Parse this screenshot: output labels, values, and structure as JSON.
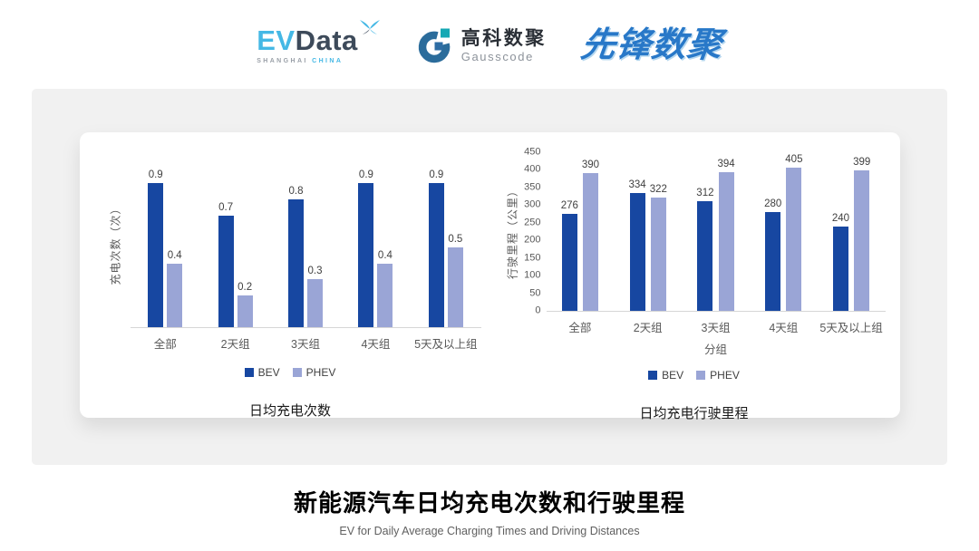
{
  "header": {
    "evdata": {
      "ev": "EV",
      "data": "Data",
      "sub_left": "SHANGHAI",
      "sub_right": "CHINA"
    },
    "gausscode": {
      "name_cn": "高科数聚",
      "name_en": "Gausscode"
    },
    "pioneer": {
      "name_cn": "先锋数聚"
    }
  },
  "colors": {
    "bev": "#1747A1",
    "phev": "#9AA5D6",
    "evdata_blue": "#45B8E5",
    "evdata_dark": "#3D4A5A",
    "gauss_ring_blue": "#2B6C9B",
    "gauss_teal": "#16A8B4",
    "gauss_inner_blue": "#2E6DA4",
    "pioneer_blue": "#2878C8",
    "panel_gray": "#F1F1F1"
  },
  "chart_data": [
    {
      "type": "bar",
      "title": "日均充电次数",
      "ylabel": "充电次数（次）",
      "xlabel": "",
      "categories": [
        "全部",
        "2天组",
        "3天组",
        "4天组",
        "5天及以上组"
      ],
      "series": [
        {
          "name": "BEV",
          "values": [
            0.9,
            0.7,
            0.8,
            0.9,
            0.9
          ]
        },
        {
          "name": "PHEV",
          "values": [
            0.4,
            0.2,
            0.3,
            0.4,
            0.5
          ]
        }
      ],
      "ylim": [
        0,
        1.05
      ],
      "grid": false,
      "y_axis_labels_visible": false,
      "data_labels": true,
      "legend_position": "bottom"
    },
    {
      "type": "bar",
      "title": "日均充电行驶里程",
      "ylabel": "行驶里程（公里）",
      "xlabel": "分组",
      "categories": [
        "全部",
        "2天组",
        "3天组",
        "4天组",
        "5天及以上组"
      ],
      "series": [
        {
          "name": "BEV",
          "values": [
            276,
            334,
            312,
            280,
            240
          ]
        },
        {
          "name": "PHEV",
          "values": [
            390,
            322,
            394,
            405,
            399
          ]
        }
      ],
      "ylim": [
        0,
        450
      ],
      "yticks": [
        0,
        50,
        100,
        150,
        200,
        250,
        300,
        350,
        400,
        450
      ],
      "grid": false,
      "data_labels": true,
      "legend_position": "bottom"
    }
  ],
  "footer": {
    "title": "新能源汽车日均充电次数和行驶里程",
    "subtitle": "EV for Daily Average Charging Times and Driving Distances"
  }
}
